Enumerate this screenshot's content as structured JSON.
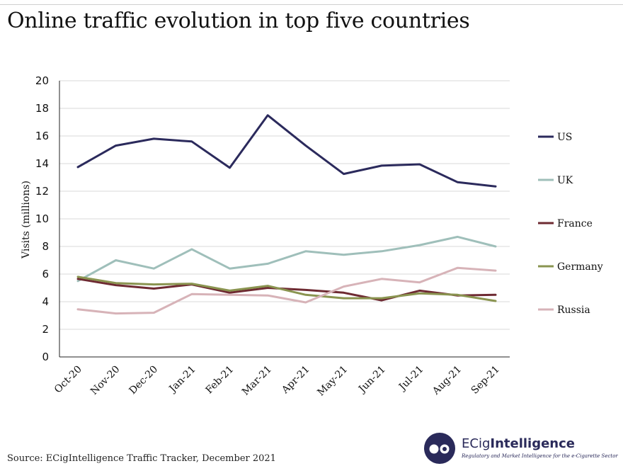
{
  "title": "Online traffic evolution in top five countries",
  "source": "Source: ECigIntelligence Traffic Tracker, December 2021",
  "brand": {
    "name_part1": "ECig",
    "name_part2": "Intelligence",
    "tagline": "Regulatory and Market Intelligence for the e-Cigarette Sector",
    "color": "#2a2a5a"
  },
  "chart_data": {
    "type": "line",
    "title": "Online traffic evolution in top five countries",
    "xlabel": "",
    "ylabel": "Visits (millions)",
    "ylim": [
      0,
      20
    ],
    "yticks": [
      0,
      2,
      4,
      6,
      8,
      10,
      12,
      14,
      16,
      18,
      20
    ],
    "grid": true,
    "legend_position": "right",
    "categories": [
      "Oct-20",
      "Nov-20",
      "Dec-20",
      "Jan-21",
      "Feb-21",
      "Mar-21",
      "Apr-21",
      "May-21",
      "Jun-21",
      "Jul-21",
      "Aug-21",
      "Sep-21"
    ],
    "series": [
      {
        "name": "US",
        "color": "#2b2a5c",
        "values": [
          13.75,
          15.3,
          15.8,
          15.6,
          13.7,
          17.5,
          15.3,
          13.25,
          13.85,
          13.95,
          12.65,
          12.35
        ]
      },
      {
        "name": "UK",
        "color": "#9fbfba",
        "values": [
          5.5,
          7.0,
          6.4,
          7.8,
          6.4,
          6.75,
          7.65,
          7.4,
          7.65,
          8.1,
          8.7,
          8.0
        ]
      },
      {
        "name": "France",
        "color": "#6e2a32",
        "values": [
          5.65,
          5.2,
          4.95,
          5.25,
          4.65,
          5.0,
          4.85,
          4.65,
          4.1,
          4.8,
          4.45,
          4.5
        ]
      },
      {
        "name": "Germany",
        "color": "#8a9450",
        "values": [
          5.8,
          5.35,
          5.25,
          5.3,
          4.8,
          5.15,
          4.5,
          4.25,
          4.25,
          4.6,
          4.5,
          4.05
        ]
      },
      {
        "name": "Russia",
        "color": "#d7b3b8",
        "values": [
          3.45,
          3.15,
          3.2,
          4.55,
          4.5,
          4.45,
          3.95,
          5.1,
          5.65,
          5.4,
          6.45,
          6.25
        ]
      }
    ]
  }
}
